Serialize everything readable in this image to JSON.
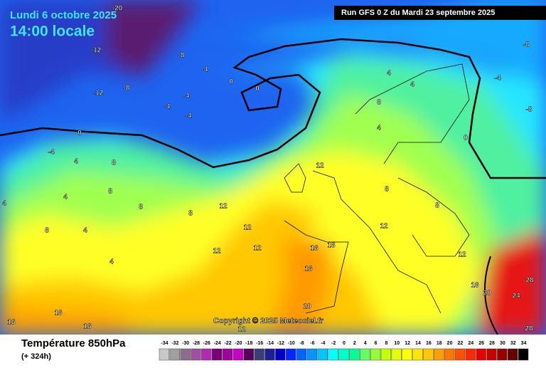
{
  "header": {
    "date": "Lundi 6 octobre 2025",
    "time": "14:00 locale",
    "run": "Run GFS 0 Z du Mardi 23 septembre 2025"
  },
  "copyright": "Copyright © 2025 Meteociel.fr",
  "footer": {
    "title": "Température 850hPa",
    "lead": "(+ 324h)"
  },
  "map_labels": [
    "-20",
    "-12",
    "-8",
    "-4",
    "0",
    "0",
    "-4",
    "-12",
    "-8",
    "-4",
    "-4",
    "0",
    "-4",
    "4",
    "8",
    "8",
    "4",
    "8",
    "4",
    "8",
    "12",
    "12",
    "12",
    "4",
    "12",
    "16",
    "16",
    "16",
    "20",
    "24",
    "28",
    "28",
    "20",
    "16",
    "12",
    "8",
    "8",
    "4",
    "4",
    "8",
    "4",
    "0",
    "-4",
    "-8",
    "-8",
    "12",
    "12",
    "16",
    "16",
    "16",
    "12",
    "4",
    "8"
  ],
  "legend": {
    "values": [
      -34,
      -32,
      -30,
      -28,
      -26,
      -24,
      -22,
      -20,
      -18,
      -16,
      -14,
      -12,
      -10,
      -8,
      -6,
      -4,
      -2,
      0,
      2,
      4,
      6,
      8,
      10,
      12,
      14,
      16,
      18,
      20,
      22,
      24,
      26,
      28,
      30,
      32,
      34
    ],
    "colors": [
      "#c8c8c8",
      "#a0a0a0",
      "#8c6e8c",
      "#a050a0",
      "#b428b4",
      "#780078",
      "#a000a0",
      "#c800c8",
      "#5a005a",
      "#3c3c78",
      "#1e1e96",
      "#0000c8",
      "#0028ff",
      "#0064ff",
      "#0096ff",
      "#00c8ff",
      "#00ffff",
      "#00ffc8",
      "#00ff96",
      "#64ff64",
      "#96ff32",
      "#c8ff00",
      "#e6ff00",
      "#ffff00",
      "#ffe600",
      "#ffc800",
      "#ffa000",
      "#ff7800",
      "#ff5000",
      "#ff2800",
      "#e60000",
      "#c80000",
      "#960000",
      "#640000",
      "#000000"
    ]
  }
}
